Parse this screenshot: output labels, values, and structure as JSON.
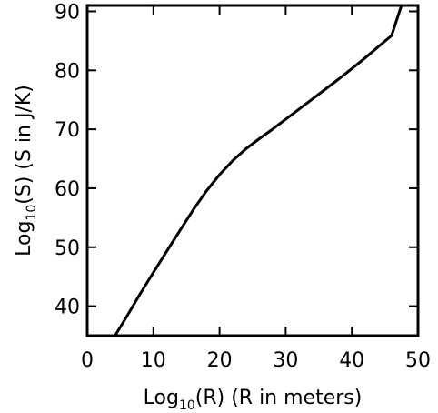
{
  "chart_data": {
    "type": "line",
    "xlabel": {
      "pre": "Log",
      "sub": "10",
      "post": "(R) (R in meters)"
    },
    "ylabel": {
      "pre": "Log",
      "sub": "10",
      "post": "(S) (S in J/K)"
    },
    "xlim": [
      0,
      50
    ],
    "ylim": [
      35,
      91
    ],
    "x_ticks": [
      0,
      10,
      20,
      30,
      40,
      50
    ],
    "y_ticks": [
      40,
      50,
      60,
      70,
      80,
      90
    ],
    "x_tick_labels": [
      "0",
      "10",
      "20",
      "30",
      "40",
      "50"
    ],
    "y_tick_labels": [
      "40",
      "50",
      "60",
      "70",
      "80",
      "90"
    ],
    "grid": false,
    "series": [
      {
        "x": [
          4.2,
          6,
          8,
          10,
          12,
          14,
          16,
          18,
          20,
          22,
          24,
          26,
          28,
          30,
          32,
          34,
          36,
          38,
          40,
          42,
          44,
          46,
          47.5
        ],
        "y": [
          35,
          38.3,
          42.1,
          45.7,
          49.3,
          52.8,
          56.3,
          59.5,
          62.3,
          64.7,
          66.7,
          68.4,
          70.0,
          71.7,
          73.4,
          75.1,
          76.8,
          78.5,
          80.3,
          82.1,
          84.0,
          85.9,
          91
        ],
        "color": "#000000"
      }
    ]
  }
}
